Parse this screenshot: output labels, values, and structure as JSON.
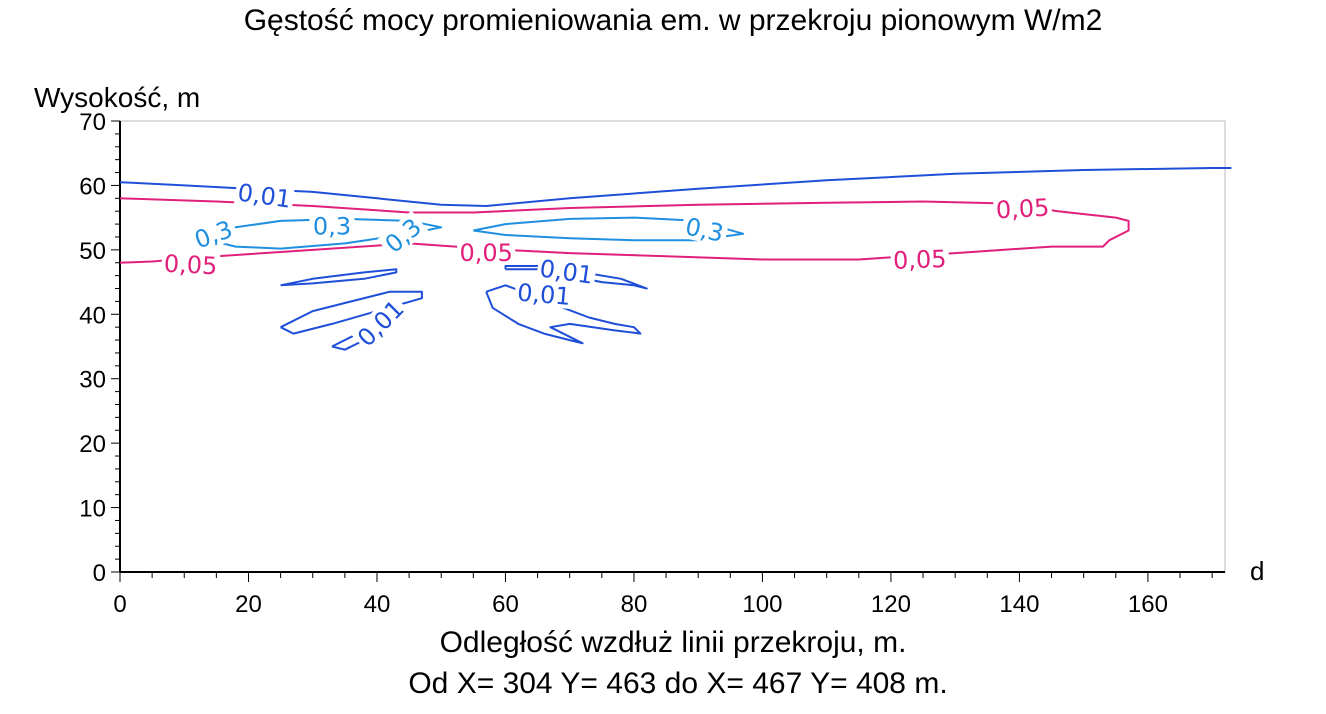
{
  "chart_data": {
    "type": "contour",
    "title": "Gęstość mocy promieniowania em. w przekroju pionowym W/m2",
    "ylabel": "Wysokość, m",
    "xlabel": "Odległość wzdłuż linii przekroju, m.",
    "subtitle": "Od X= 304 Y= 463 do X= 467 Y= 408 m.",
    "x_axis_end_label": "d",
    "xlim": [
      0,
      172
    ],
    "ylim": [
      0,
      70
    ],
    "x_ticks": [
      0,
      20,
      40,
      60,
      80,
      100,
      120,
      140,
      160
    ],
    "y_ticks": [
      0,
      10,
      20,
      30,
      40,
      50,
      60,
      70
    ],
    "grid": false,
    "colors": {
      "0.01": "#1f4fd8",
      "0.05": "#e0207a",
      "0.3": "#1f8fe0"
    },
    "contours": [
      {
        "level": "0,01",
        "color": "#1f4fd8",
        "lines": [
          [
            [
              0,
              60.5
            ],
            [
              10,
              60
            ],
            [
              20,
              59.5
            ],
            [
              30,
              59
            ],
            [
              40,
              58
            ],
            [
              50,
              57
            ],
            [
              57,
              56.8
            ],
            [
              70,
              58
            ],
            [
              90,
              59.5
            ],
            [
              110,
              60.8
            ],
            [
              130,
              61.8
            ],
            [
              150,
              62.4
            ],
            [
              170,
              62.7
            ],
            [
              173,
              62.7
            ]
          ],
          [
            [
              25,
              44.5
            ],
            [
              30,
              45.5
            ],
            [
              38,
              46.5
            ],
            [
              43,
              47
            ],
            [
              43,
              46.5
            ],
            [
              38,
              45.5
            ],
            [
              30,
              44.8
            ],
            [
              25,
              44.5
            ]
          ],
          [
            [
              25,
              38
            ],
            [
              30,
              40.5
            ],
            [
              36,
              42
            ],
            [
              42,
              43.5
            ],
            [
              47,
              43.5
            ],
            [
              47,
              42.5
            ],
            [
              40,
              40.5
            ],
            [
              33,
              38.5
            ],
            [
              27,
              37
            ],
            [
              25,
              38
            ]
          ],
          [
            [
              33,
              35
            ],
            [
              36,
              36.5
            ],
            [
              40,
              38.5
            ],
            [
              44,
              40.5
            ],
            [
              44,
              39.5
            ],
            [
              41,
              37.5
            ],
            [
              38,
              36
            ],
            [
              35,
              34.5
            ],
            [
              33,
              35
            ]
          ],
          [
            [
              60,
              47
            ],
            [
              65,
              47
            ],
            [
              70,
              46
            ],
            [
              75,
              45
            ],
            [
              80,
              44.5
            ],
            [
              82,
              44
            ],
            [
              78,
              45.5
            ],
            [
              72,
              46.5
            ],
            [
              66,
              47.5
            ],
            [
              60,
              47.5
            ],
            [
              60,
              47
            ]
          ],
          [
            [
              57,
              43.5
            ],
            [
              60,
              44.5
            ],
            [
              64,
              43
            ],
            [
              69,
              41
            ],
            [
              73,
              39.5
            ],
            [
              77,
              38.5
            ],
            [
              80,
              38
            ],
            [
              81,
              37
            ],
            [
              77,
              37.5
            ],
            [
              70,
              38.5
            ],
            [
              67,
              38
            ],
            [
              70,
              36.5
            ],
            [
              72,
              35.5
            ],
            [
              70,
              36
            ],
            [
              66,
              37
            ],
            [
              62,
              38.5
            ],
            [
              58,
              41
            ],
            [
              57,
              43.5
            ]
          ]
        ],
        "labels": [
          {
            "text": "0,01",
            "x": 22.5,
            "y": 58.5,
            "angle": 8
          },
          {
            "text": "0,01",
            "x": 69.5,
            "y": 46.7,
            "angle": 8
          },
          {
            "text": "0,01",
            "x": 66,
            "y": 43.2,
            "angle": 5
          },
          {
            "text": "0,01",
            "x": 40.5,
            "y": 38.7,
            "angle": -45
          }
        ]
      },
      {
        "level": "0,05",
        "color": "#e0207a",
        "lines": [
          [
            [
              0,
              58
            ],
            [
              15,
              57.5
            ],
            [
              30,
              56.8
            ],
            [
              45,
              55.8
            ],
            [
              55,
              55.8
            ],
            [
              70,
              56.5
            ],
            [
              90,
              57
            ],
            [
              110,
              57.3
            ],
            [
              125,
              57.5
            ],
            [
              138,
              57.2
            ],
            [
              146,
              56
            ],
            [
              155,
              55
            ],
            [
              157,
              54.5
            ],
            [
              157,
              53
            ],
            [
              154,
              51.5
            ],
            [
              153,
              50.5
            ],
            [
              145,
              50.5
            ],
            [
              130,
              49.5
            ],
            [
              115,
              48.5
            ],
            [
              100,
              48.5
            ],
            [
              85,
              49
            ],
            [
              70,
              49.5
            ],
            [
              60,
              50
            ],
            [
              55,
              50.3
            ],
            [
              45,
              51
            ],
            [
              30,
              50
            ],
            [
              15,
              49
            ],
            [
              5,
              48.2
            ],
            [
              0,
              48
            ]
          ]
        ],
        "labels": [
          {
            "text": "0,05",
            "x": 140.5,
            "y": 56.5,
            "angle": -3
          },
          {
            "text": "0,05",
            "x": 11,
            "y": 47.8,
            "angle": 3
          },
          {
            "text": "0,05",
            "x": 57,
            "y": 49.7,
            "angle": 0
          },
          {
            "text": "0,05",
            "x": 124.5,
            "y": 48.6,
            "angle": -2
          }
        ]
      },
      {
        "level": "0,3",
        "color": "#1f8fe0",
        "lines": [
          [
            [
              14,
              51.5
            ],
            [
              18,
              50.5
            ],
            [
              25,
              50.2
            ],
            [
              35,
              51
            ],
            [
              45,
              52.5
            ],
            [
              50,
              53.5
            ],
            [
              45,
              54.5
            ],
            [
              35,
              54.8
            ],
            [
              25,
              54.5
            ],
            [
              18,
              53.5
            ],
            [
              14,
              52.5
            ],
            [
              14,
              51.5
            ]
          ],
          [
            [
              55,
              53
            ],
            [
              60,
              54
            ],
            [
              70,
              54.8
            ],
            [
              80,
              55
            ],
            [
              90,
              54.5
            ],
            [
              97,
              52.5
            ],
            [
              90,
              51.5
            ],
            [
              80,
              51.5
            ],
            [
              70,
              51.8
            ],
            [
              60,
              52.3
            ],
            [
              55,
              53
            ]
          ]
        ],
        "labels": [
          {
            "text": "0,3",
            "x": 14.5,
            "y": 52.5,
            "angle": -20
          },
          {
            "text": "0,3",
            "x": 33,
            "y": 53.8,
            "angle": 0
          },
          {
            "text": "0,3",
            "x": 44,
            "y": 52.3,
            "angle": -40
          },
          {
            "text": "0,3",
            "x": 91,
            "y": 53.2,
            "angle": 12
          }
        ]
      }
    ]
  }
}
